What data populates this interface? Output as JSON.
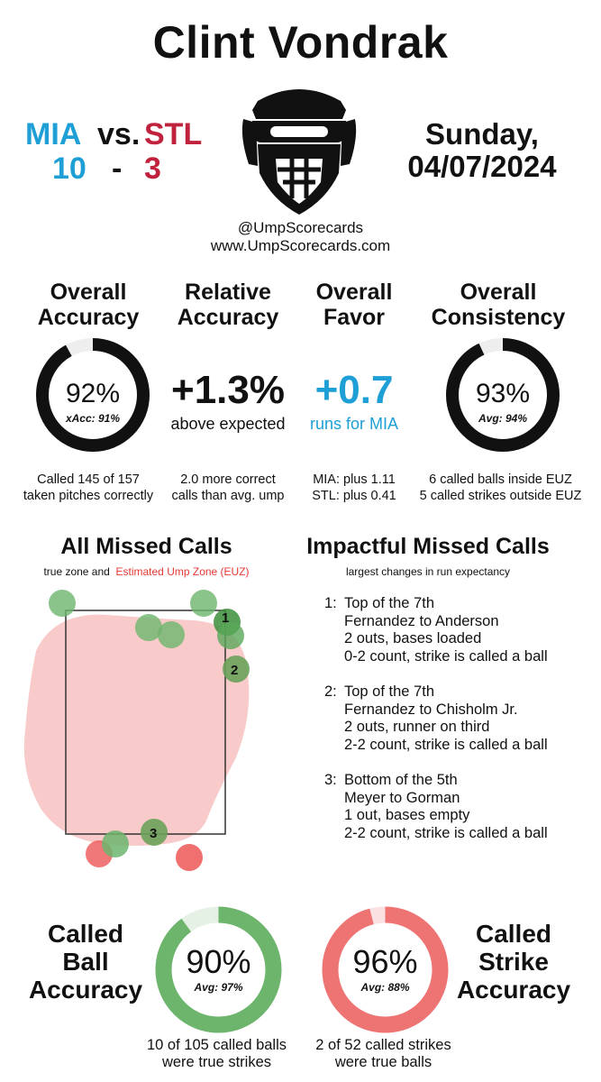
{
  "header": {
    "umpire": "Clint Vondrak",
    "away_team": "MIA",
    "vs": "vs.",
    "home_team": "STL",
    "away_score": "10",
    "dash": "-",
    "home_score": "3",
    "day": "Sunday,",
    "date": "04/07/2024",
    "handle": "@UmpScorecards",
    "website": "www.UmpScorecards.com"
  },
  "colors": {
    "away": "#1e9fd6",
    "home": "#c0213c",
    "ball_green": "#6db56d",
    "strike_red": "#ee7474",
    "euz_pink": "#f8caca"
  },
  "metrics": {
    "accuracy": {
      "title_line1": "Overall",
      "title_line2": "Accuracy",
      "value": "92%",
      "percent": 92,
      "sub": "xAcc: 91%",
      "note_line1": "Called 145 of 157",
      "note_line2": "taken pitches correctly"
    },
    "relative": {
      "title_line1": "Relative",
      "title_line2": "Accuracy",
      "value": "+1.3%",
      "sub": "above expected",
      "note_line1": "2.0 more correct",
      "note_line2": "calls than avg. ump"
    },
    "favor": {
      "title_line1": "Overall",
      "title_line2": "Favor",
      "value": "+0.7",
      "sub": "runs for MIA",
      "note_line1": "MIA: plus 1.11",
      "note_line2": "STL: plus 0.41"
    },
    "consistency": {
      "title_line1": "Overall",
      "title_line2": "Consistency",
      "value": "93%",
      "percent": 93,
      "sub": "Avg: 94%",
      "note_line1": "6 called balls inside EUZ",
      "note_line2": "5 called strikes outside EUZ"
    }
  },
  "missed": {
    "title": "All Missed Calls",
    "legend_prefix": "true zone and",
    "legend_euz": "Estimated Ump Zone (EUZ)"
  },
  "impactful": {
    "title": "Impactful Missed Calls",
    "subtitle": "largest changes in run expectancy",
    "items": [
      {
        "num": "1:",
        "inning": "Top of the 7th",
        "matchup": "Fernandez to Anderson",
        "situation": "2 outs, bases loaded",
        "call": "0-2 count, strike is called a ball"
      },
      {
        "num": "2:",
        "inning": "Top of the 7th",
        "matchup": "Fernandez to Chisholm Jr.",
        "situation": "2 outs, runner on third",
        "call": "2-2 count, strike is called a ball"
      },
      {
        "num": "3:",
        "inning": "Bottom of the 5th",
        "matchup": "Meyer to Gorman",
        "situation": "1 out, bases empty",
        "call": "2-2 count, strike is called a ball"
      }
    ]
  },
  "bottom": {
    "ball": {
      "title_line1": "Called",
      "title_line2": "Ball",
      "title_line3": "Accuracy",
      "value": "90%",
      "percent": 90,
      "sub": "Avg: 97%",
      "note_line1": "10 of 105 called balls",
      "note_line2": "were true strikes"
    },
    "strike": {
      "title_line1": "Called",
      "title_line2": "Strike",
      "title_line3": "Accuracy",
      "value": "96%",
      "percent": 96,
      "sub": "Avg: 88%",
      "note_line1": "2 of 52 called strikes",
      "note_line2": "were true balls"
    }
  },
  "pitch_labels": [
    "1",
    "2",
    "3"
  ]
}
